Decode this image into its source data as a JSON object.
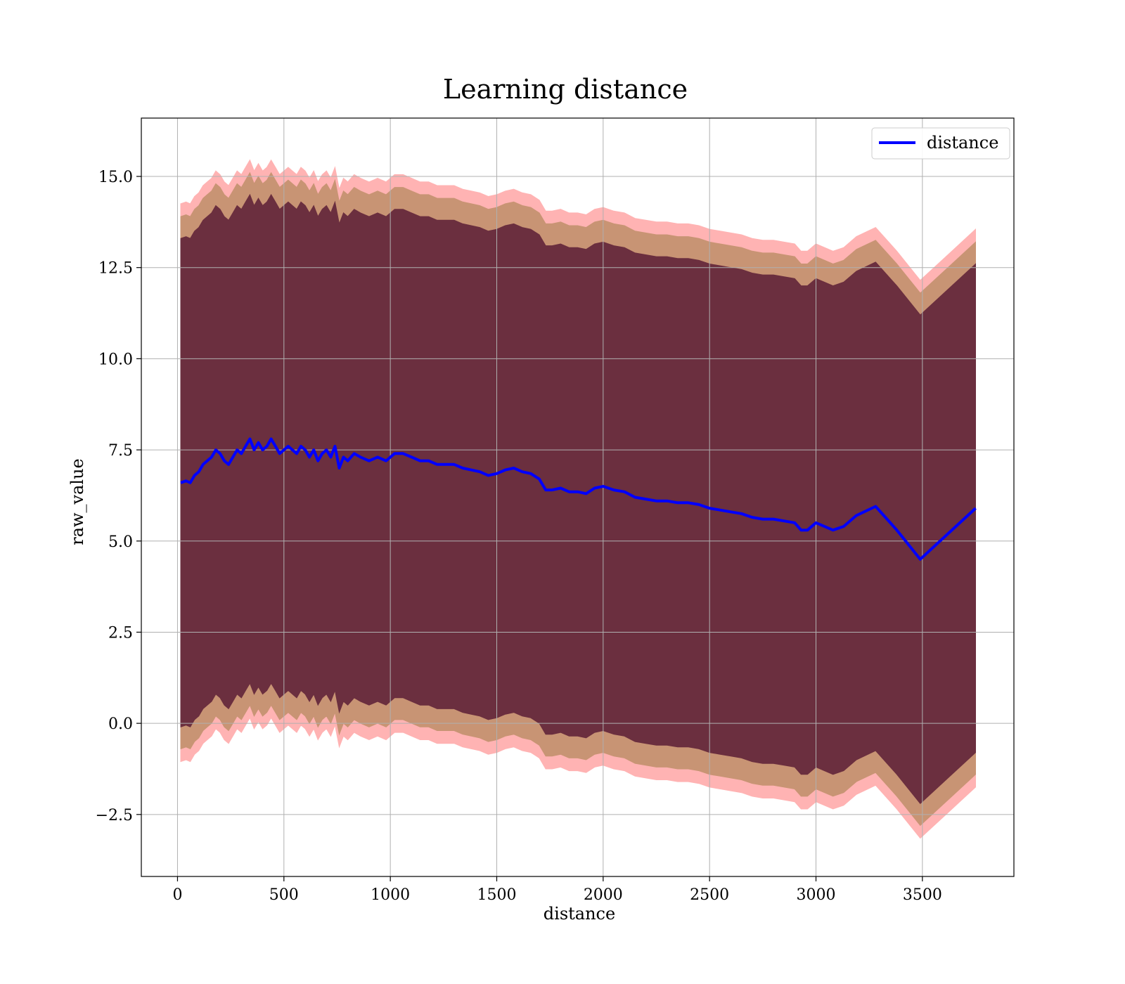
{
  "chart_data": {
    "type": "line",
    "title": "Learning distance",
    "xlabel": "distance",
    "ylabel": "raw_value",
    "xlim": [
      -170,
      3930
    ],
    "ylim": [
      -4.2,
      16.6
    ],
    "xticks": [
      0,
      500,
      1000,
      1500,
      2000,
      2500,
      3000,
      3500
    ],
    "xtick_labels": [
      "0",
      "500",
      "1000",
      "1500",
      "2000",
      "2500",
      "3000",
      "3500"
    ],
    "yticks": [
      -2.5,
      0.0,
      2.5,
      5.0,
      7.5,
      10.0,
      12.5,
      15.0
    ],
    "ytick_labels": [
      "−2.5",
      "0.0",
      "2.5",
      "5.0",
      "7.5",
      "10.0",
      "12.5",
      "15.0"
    ],
    "grid": true,
    "legend": {
      "position": "top-right",
      "entries": [
        "distance"
      ]
    },
    "series": [
      {
        "name": "distance",
        "color": "#0000ff",
        "x": [
          15,
          40,
          60,
          80,
          100,
          120,
          140,
          160,
          180,
          200,
          220,
          240,
          260,
          280,
          300,
          320,
          340,
          360,
          380,
          400,
          420,
          440,
          460,
          480,
          500,
          520,
          540,
          560,
          580,
          600,
          620,
          640,
          660,
          680,
          700,
          720,
          740,
          760,
          780,
          800,
          830,
          860,
          900,
          940,
          980,
          1020,
          1060,
          1100,
          1140,
          1180,
          1220,
          1260,
          1300,
          1340,
          1380,
          1420,
          1460,
          1500,
          1540,
          1580,
          1620,
          1660,
          1700,
          1730,
          1760,
          1800,
          1840,
          1880,
          1920,
          1960,
          2000,
          2050,
          2100,
          2150,
          2200,
          2250,
          2300,
          2350,
          2400,
          2450,
          2500,
          2550,
          2600,
          2650,
          2700,
          2750,
          2800,
          2850,
          2900,
          2930,
          2960,
          3000,
          3080,
          3130,
          3190,
          3280,
          3380,
          3490,
          3620,
          3750
        ],
        "y": [
          6.6,
          6.65,
          6.6,
          6.8,
          6.9,
          7.1,
          7.2,
          7.3,
          7.5,
          7.4,
          7.2,
          7.1,
          7.3,
          7.5,
          7.4,
          7.6,
          7.8,
          7.5,
          7.7,
          7.5,
          7.6,
          7.8,
          7.6,
          7.4,
          7.5,
          7.6,
          7.5,
          7.4,
          7.6,
          7.5,
          7.3,
          7.5,
          7.2,
          7.4,
          7.5,
          7.3,
          7.6,
          7.0,
          7.3,
          7.2,
          7.4,
          7.3,
          7.2,
          7.3,
          7.2,
          7.4,
          7.4,
          7.3,
          7.2,
          7.2,
          7.1,
          7.1,
          7.1,
          7.0,
          6.95,
          6.9,
          6.8,
          6.85,
          6.95,
          7.0,
          6.9,
          6.85,
          6.7,
          6.4,
          6.4,
          6.45,
          6.35,
          6.35,
          6.3,
          6.45,
          6.5,
          6.4,
          6.35,
          6.2,
          6.15,
          6.1,
          6.1,
          6.05,
          6.05,
          6.0,
          5.9,
          5.85,
          5.8,
          5.75,
          5.65,
          5.6,
          5.6,
          5.55,
          5.5,
          5.3,
          5.3,
          5.5,
          5.3,
          5.4,
          5.7,
          5.95,
          5.3,
          4.5,
          5.2,
          5.9
        ],
        "bands": [
          {
            "sigma": 1,
            "color": "#6b2f3f"
          },
          {
            "sigma": 2,
            "color": "#c89474"
          },
          {
            "sigma": 3,
            "color": "#ffb3b3"
          }
        ],
        "band_halfwidth": [
          6.7,
          7.3,
          7.65
        ]
      }
    ]
  }
}
